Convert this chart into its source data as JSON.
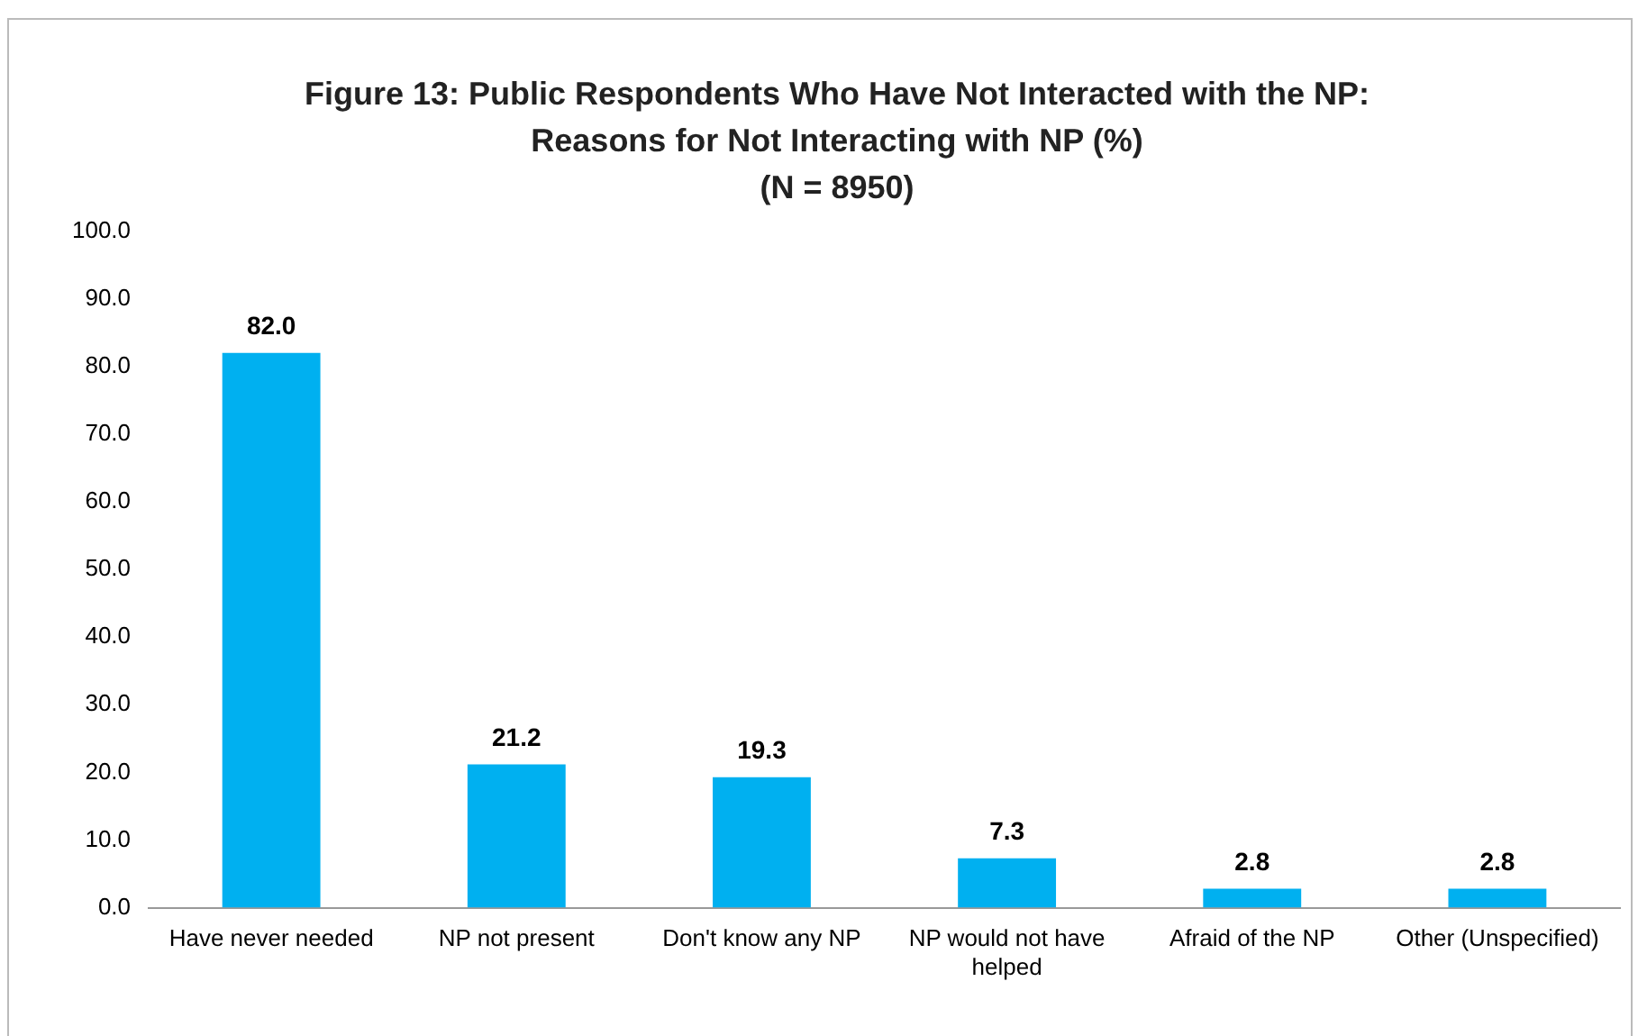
{
  "chart_data": {
    "type": "bar",
    "title": "Figure 13: Public Respondents Who Have Not Interacted with the NP: Reasons for Not Interacting with NP (%)",
    "subtitle": "(N = 8950)",
    "categories": [
      "Have never needed",
      "NP not present",
      "Don't know any NP",
      "NP would not have helped",
      "Afraid of the NP",
      "Other (Unspecified)"
    ],
    "values": [
      82.0,
      21.2,
      19.3,
      7.3,
      2.8,
      2.8
    ],
    "color": "#00b0f0",
    "ylim": [
      0,
      100
    ],
    "yticks": [
      {
        "value": 0,
        "label": "0.0"
      },
      {
        "value": 10,
        "label": "10.0"
      },
      {
        "value": 20,
        "label": "20.0"
      },
      {
        "value": 30,
        "label": "30.0"
      },
      {
        "value": 40,
        "label": "40.0"
      },
      {
        "value": 50,
        "label": "50.0"
      },
      {
        "value": 60,
        "label": "60.0"
      },
      {
        "value": 70,
        "label": "70.0"
      },
      {
        "value": 80,
        "label": "80.0"
      },
      {
        "value": 90,
        "label": "90.0"
      },
      {
        "value": 100,
        "label": "100.0"
      }
    ],
    "grid": false,
    "legend": false,
    "value_labels": [
      "82.0",
      "21.2",
      "19.3",
      "7.3",
      "2.8",
      "2.8"
    ]
  }
}
